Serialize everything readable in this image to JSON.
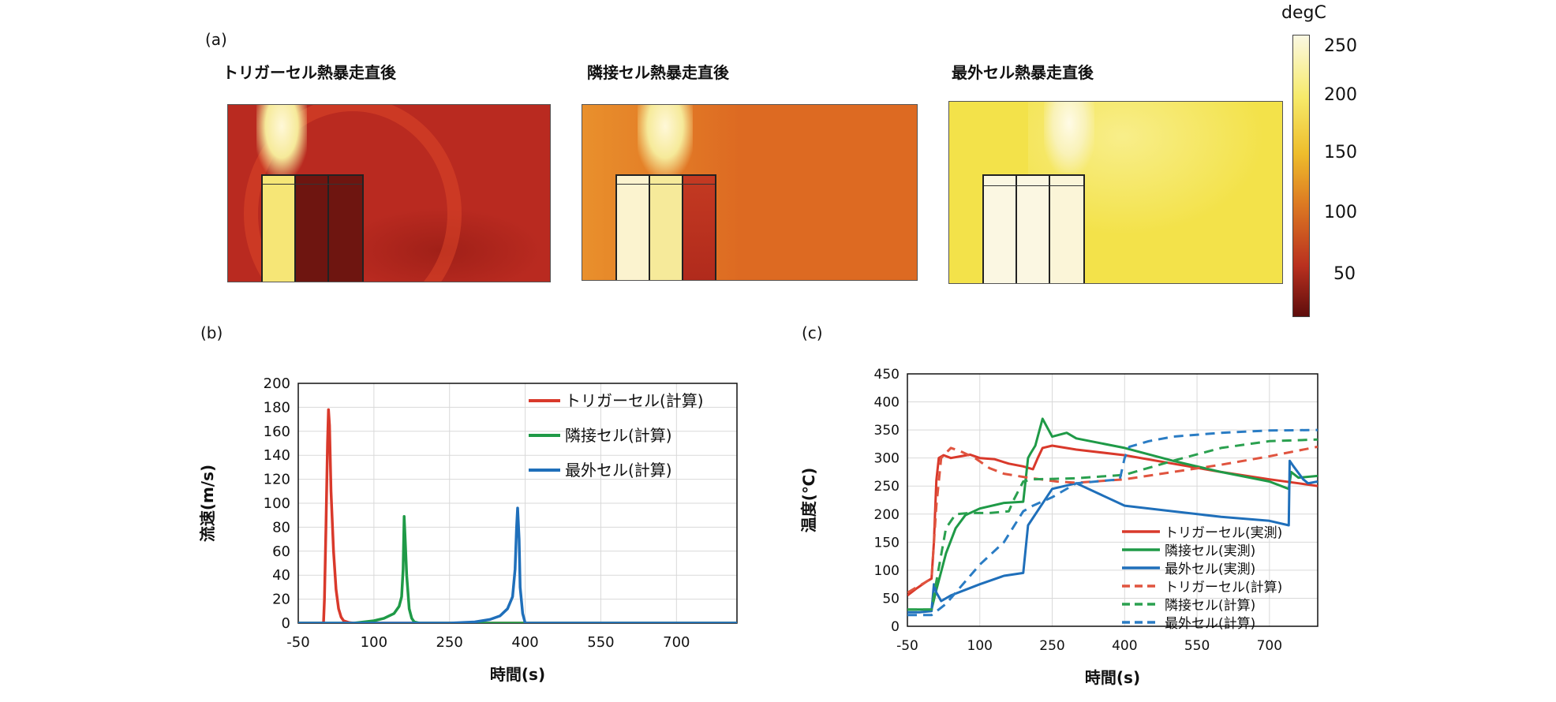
{
  "panel_labels": {
    "a": "(a)",
    "b": "(b)",
    "c": "(c)"
  },
  "heatmaps": [
    {
      "title": "トリガーセル熱暴走直後",
      "bg": "#b92a20"
    },
    {
      "title": "隣接セル熱暴走直後",
      "bg": "#dd6a22"
    },
    {
      "title": "最外セル熱暴走直後",
      "bg": "#f3e24a"
    }
  ],
  "colorbar": {
    "unit": "degC",
    "ticks": [
      "250",
      "200",
      "150",
      "100",
      "50"
    ],
    "colors": [
      "#fbf8e2",
      "#f6ea6a",
      "#eebd2c",
      "#dd7a22",
      "#b9301f",
      "#5e0d0c"
    ]
  },
  "chart_data": [
    {
      "type": "line",
      "xlabel": "時間(s)",
      "ylabel": "流速(m/s)",
      "xticks": [
        "-50",
        "100",
        "250",
        "400",
        "550",
        "700"
      ],
      "yticks": [
        "0",
        "20",
        "40",
        "60",
        "80",
        "100",
        "120",
        "140",
        "160",
        "180",
        "200"
      ],
      "xlim": [
        -50,
        820
      ],
      "ylim": [
        0,
        200
      ],
      "series": [
        {
          "name": "トリガーセル(計算)",
          "color": "#d9392b",
          "dash": false,
          "x": [
            -50,
            0,
            2,
            5,
            8,
            10,
            12,
            15,
            20,
            25,
            30,
            35,
            40,
            50,
            60,
            820
          ],
          "y": [
            0,
            0,
            20,
            80,
            150,
            178,
            165,
            110,
            60,
            28,
            12,
            5,
            2,
            0.5,
            0,
            0
          ]
        },
        {
          "name": "隣接セル(計算)",
          "color": "#1f9a47",
          "dash": false,
          "x": [
            -50,
            60,
            80,
            100,
            120,
            140,
            150,
            155,
            158,
            160,
            162,
            165,
            170,
            175,
            180,
            190,
            820
          ],
          "y": [
            0,
            0,
            1,
            2,
            4,
            8,
            14,
            22,
            45,
            89,
            70,
            40,
            12,
            4,
            1,
            0,
            0
          ]
        },
        {
          "name": "最外セル(計算)",
          "color": "#1f6fba",
          "dash": false,
          "x": [
            -50,
            250,
            300,
            330,
            350,
            365,
            375,
            380,
            383,
            385,
            388,
            390,
            395,
            400,
            820
          ],
          "y": [
            0,
            0,
            1,
            3,
            6,
            12,
            22,
            45,
            80,
            96,
            70,
            30,
            8,
            0,
            0
          ]
        }
      ],
      "legend_position": "top-right"
    },
    {
      "type": "line",
      "xlabel": "時間(s)",
      "ylabel": "温度(℃)",
      "xticks": [
        "-50",
        "100",
        "250",
        "400",
        "550",
        "700"
      ],
      "yticks": [
        "0",
        "50",
        "100",
        "150",
        "200",
        "250",
        "300",
        "350",
        "400",
        "450"
      ],
      "xlim": [
        -50,
        800
      ],
      "ylim": [
        0,
        450
      ],
      "series": [
        {
          "name": "トリガーセル(実測)",
          "color": "#d9392b",
          "dash": false,
          "x": [
            -50,
            -30,
            -10,
            0,
            5,
            10,
            15,
            25,
            40,
            60,
            80,
            100,
            130,
            160,
            190,
            210,
            220,
            230,
            250,
            300,
            400,
            500,
            600,
            700,
            760,
            800
          ],
          "y": [
            55,
            68,
            80,
            85,
            150,
            260,
            300,
            305,
            300,
            303,
            306,
            300,
            298,
            290,
            285,
            280,
            300,
            318,
            322,
            315,
            305,
            290,
            275,
            262,
            255,
            250
          ]
        },
        {
          "name": "隣接セル(実測)",
          "color": "#1f9a47",
          "dash": false,
          "x": [
            -50,
            -30,
            0,
            10,
            30,
            50,
            70,
            100,
            150,
            190,
            200,
            205,
            215,
            230,
            250,
            280,
            300,
            400,
            500,
            600,
            700,
            740,
            745,
            760,
            800
          ],
          "y": [
            30,
            30,
            30,
            65,
            130,
            175,
            198,
            210,
            220,
            222,
            300,
            308,
            322,
            370,
            338,
            345,
            335,
            318,
            295,
            275,
            258,
            245,
            275,
            265,
            268
          ]
        },
        {
          "name": "最外セル(実測)",
          "color": "#1f6fba",
          "dash": false,
          "x": [
            -50,
            -25,
            0,
            5,
            10,
            20,
            40,
            70,
            100,
            150,
            190,
            200,
            250,
            300,
            400,
            500,
            600,
            700,
            740,
            742,
            750,
            770,
            780,
            800
          ],
          "y": [
            25,
            25,
            27,
            75,
            60,
            45,
            55,
            65,
            75,
            90,
            95,
            180,
            245,
            255,
            215,
            205,
            195,
            188,
            180,
            295,
            285,
            262,
            255,
            258
          ]
        },
        {
          "name": "トリガーセル(計算)",
          "color": "#e0543f",
          "dash": true,
          "x": [
            -50,
            -20,
            0,
            10,
            20,
            40,
            60,
            90,
            120,
            150,
            200,
            260,
            300,
            400,
            500,
            600,
            700,
            800
          ],
          "y": [
            60,
            75,
            85,
            215,
            300,
            318,
            312,
            300,
            282,
            272,
            265,
            258,
            256,
            262,
            275,
            288,
            303,
            320
          ]
        },
        {
          "name": "隣接セル(計算)",
          "color": "#2aa04f",
          "dash": true,
          "x": [
            -50,
            0,
            10,
            30,
            50,
            80,
            120,
            160,
            170,
            190,
            210,
            260,
            300,
            400,
            500,
            600,
            700,
            800
          ],
          "y": [
            30,
            30,
            80,
            175,
            200,
            202,
            202,
            205,
            225,
            258,
            262,
            263,
            264,
            270,
            295,
            318,
            330,
            333
          ]
        },
        {
          "name": "最外セル(計算)",
          "color": "#2a7cc4",
          "dash": true,
          "x": [
            -50,
            0,
            30,
            60,
            100,
            150,
            190,
            210,
            250,
            300,
            390,
            400,
            410,
            450,
            500,
            600,
            700,
            800
          ],
          "y": [
            20,
            20,
            40,
            70,
            110,
            150,
            205,
            215,
            230,
            255,
            262,
            300,
            320,
            330,
            338,
            345,
            349,
            350
          ]
        }
      ],
      "legend_position": "bottom-right"
    }
  ]
}
